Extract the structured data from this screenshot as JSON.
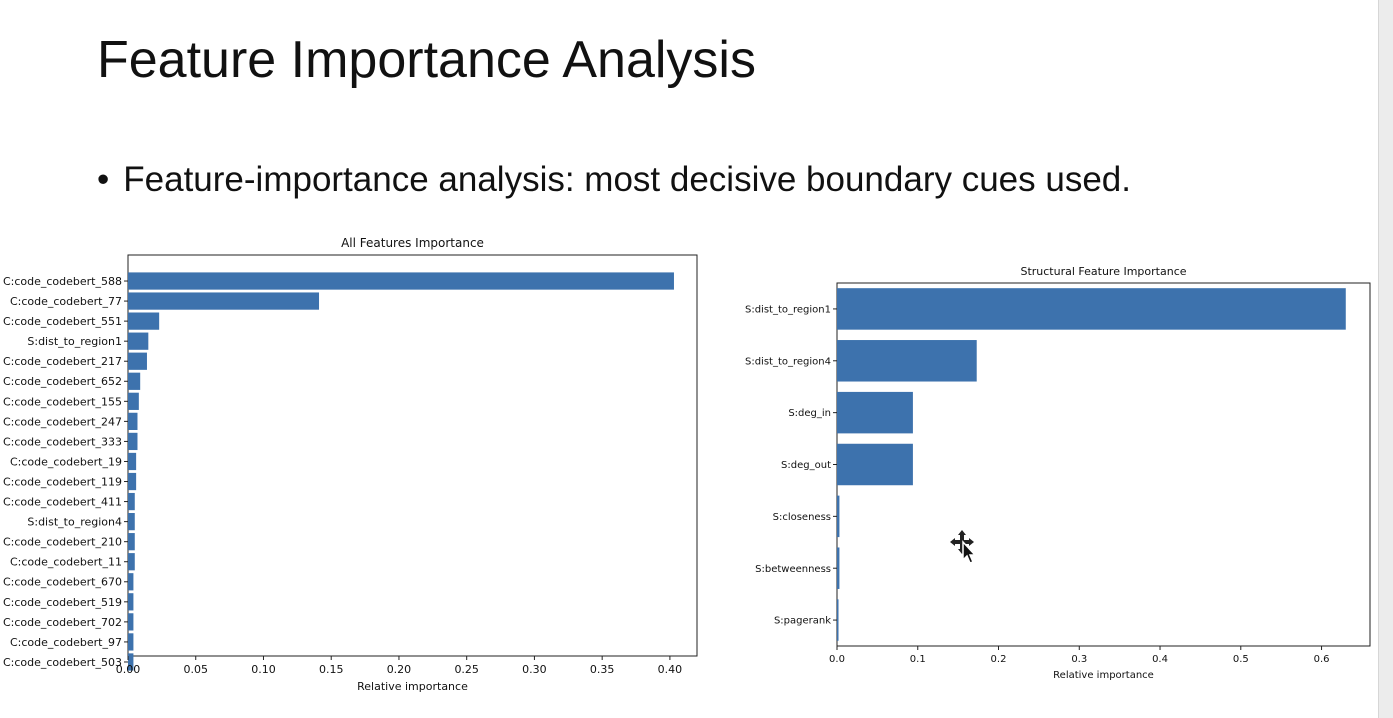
{
  "slide": {
    "title": "Feature Importance Analysis",
    "bullet": "Feature-importance analysis: most decisive boundary cues used."
  },
  "colors": {
    "bar": "#3d72ad",
    "axis": "#222222",
    "text": "#111111"
  },
  "cursor_icon": "move-cursor-icon",
  "chart_data": [
    {
      "type": "bar",
      "orientation": "horizontal",
      "title": "All Features Importance",
      "xlabel": "Relative importance",
      "ylabel": "",
      "xlim": [
        0,
        0.42
      ],
      "xticks": [
        "0.00",
        "0.05",
        "0.10",
        "0.15",
        "0.20",
        "0.25",
        "0.30",
        "0.35",
        "0.40"
      ],
      "categories": [
        "C:code_codebert_588",
        "C:code_codebert_77",
        "C:code_codebert_551",
        "S:dist_to_region1",
        "C:code_codebert_217",
        "C:code_codebert_652",
        "C:code_codebert_155",
        "C:code_codebert_247",
        "C:code_codebert_333",
        "C:code_codebert_19",
        "C:code_codebert_119",
        "C:code_codebert_411",
        "S:dist_to_region4",
        "C:code_codebert_210",
        "C:code_codebert_11",
        "C:code_codebert_670",
        "C:code_codebert_519",
        "C:code_codebert_702",
        "C:code_codebert_97",
        "C:code_codebert_503"
      ],
      "values": [
        0.403,
        0.141,
        0.023,
        0.015,
        0.014,
        0.009,
        0.008,
        0.007,
        0.007,
        0.006,
        0.006,
        0.005,
        0.005,
        0.005,
        0.005,
        0.004,
        0.004,
        0.004,
        0.004,
        0.004
      ]
    },
    {
      "type": "bar",
      "orientation": "horizontal",
      "title": "Structural Feature Importance",
      "xlabel": "Relative importance",
      "ylabel": "",
      "xlim": [
        0,
        0.66
      ],
      "xticks": [
        "0.0",
        "0.1",
        "0.2",
        "0.3",
        "0.4",
        "0.5",
        "0.6"
      ],
      "categories": [
        "S:dist_to_region1",
        "S:dist_to_region4",
        "S:deg_in",
        "S:deg_out",
        "S:closeness",
        "S:betweenness",
        "S:pagerank"
      ],
      "values": [
        0.63,
        0.173,
        0.094,
        0.094,
        0.003,
        0.003,
        0.001
      ]
    }
  ]
}
